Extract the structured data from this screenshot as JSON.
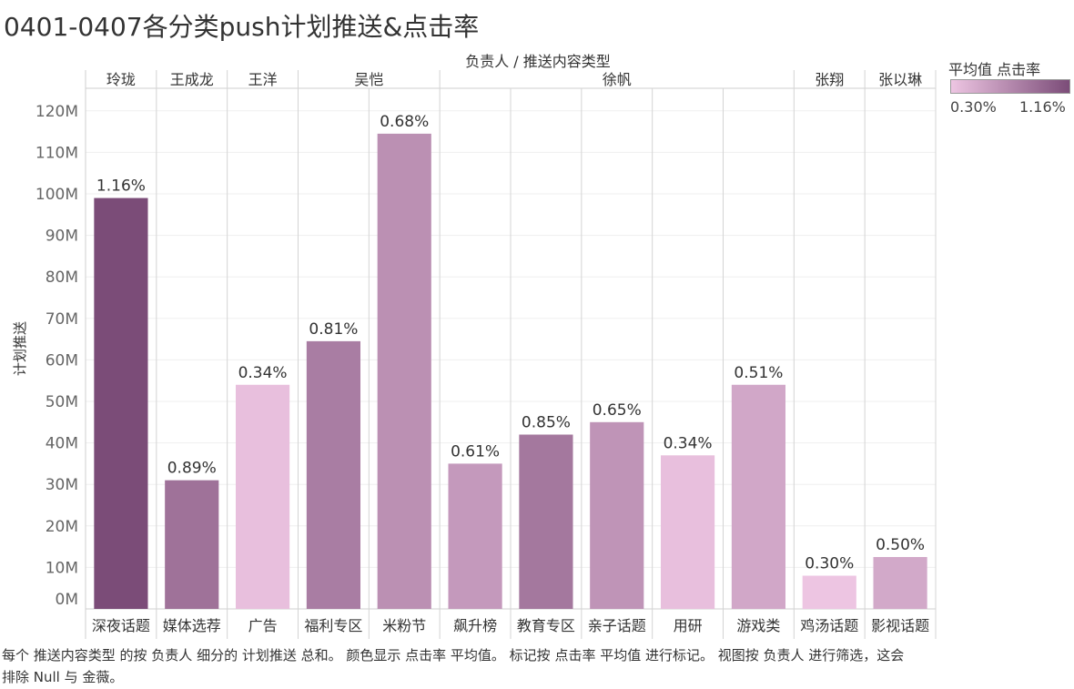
{
  "title": "0401-0407各分类push计划推送&点击率",
  "caption": "每个 推送内容类型 的按 负责人 细分的 计划推送 总和。 颜色显示 点击率 平均值。 标记按 点击率 平均值 进行标记。 视图按 负责人 进行筛选，这会排除 Null 与 金薇。",
  "legend": {
    "title": "平均值 点击率",
    "min_label": "0.30%",
    "max_label": "1.16%",
    "color_min": "#edc5e2",
    "color_max": "#7b4c78"
  },
  "chart_data": {
    "type": "bar",
    "header_label": "负责人 / 推送内容类型",
    "ylabel": "计划推送",
    "ylim": [
      0,
      125
    ],
    "y_ticks": [
      {
        "value": 0,
        "label": "0M"
      },
      {
        "value": 10,
        "label": "10M"
      },
      {
        "value": 20,
        "label": "20M"
      },
      {
        "value": 30,
        "label": "30M"
      },
      {
        "value": 40,
        "label": "40M"
      },
      {
        "value": 50,
        "label": "50M"
      },
      {
        "value": 60,
        "label": "60M"
      },
      {
        "value": 70,
        "label": "70M"
      },
      {
        "value": 80,
        "label": "80M"
      },
      {
        "value": 90,
        "label": "90M"
      },
      {
        "value": 100,
        "label": "100M"
      },
      {
        "value": 110,
        "label": "110M"
      },
      {
        "value": 120,
        "label": "120M"
      }
    ],
    "groups": [
      {
        "owner": "玲珑",
        "categories": [
          {
            "name": "深夜话题",
            "value": 99,
            "rate": 1.16,
            "label": "1.16%"
          }
        ]
      },
      {
        "owner": "王成龙",
        "categories": [
          {
            "name": "媒体选荐",
            "value": 31,
            "rate": 0.89,
            "label": "0.89%"
          }
        ]
      },
      {
        "owner": "王洋",
        "categories": [
          {
            "name": "广告",
            "value": 54,
            "rate": 0.34,
            "label": "0.34%"
          }
        ]
      },
      {
        "owner": "吴恺",
        "categories": [
          {
            "name": "福利专区",
            "value": 64.5,
            "rate": 0.81,
            "label": "0.81%"
          },
          {
            "name": "米粉节",
            "value": 114.5,
            "rate": 0.68,
            "label": "0.68%"
          }
        ]
      },
      {
        "owner": "徐帆",
        "categories": [
          {
            "name": "飙升榜",
            "value": 35,
            "rate": 0.61,
            "label": "0.61%"
          },
          {
            "name": "教育专区",
            "value": 42,
            "rate": 0.85,
            "label": "0.85%"
          },
          {
            "name": "亲子话题",
            "value": 45,
            "rate": 0.65,
            "label": "0.65%"
          },
          {
            "name": "用研",
            "value": 37,
            "rate": 0.34,
            "label": "0.34%"
          },
          {
            "name": "游戏类",
            "value": 54,
            "rate": 0.51,
            "label": "0.51%"
          }
        ]
      },
      {
        "owner": "张翔",
        "categories": [
          {
            "name": "鸡汤话题",
            "value": 8,
            "rate": 0.3,
            "label": "0.30%"
          }
        ]
      },
      {
        "owner": "张以琳",
        "categories": [
          {
            "name": "影视话题",
            "value": 12.5,
            "rate": 0.5,
            "label": "0.50%"
          }
        ]
      }
    ]
  }
}
